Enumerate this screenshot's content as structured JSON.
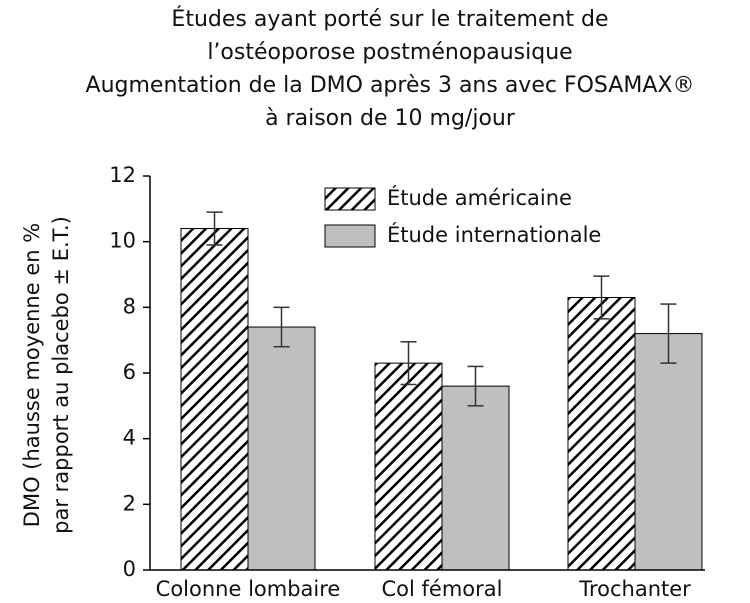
{
  "chart_data": {
    "type": "bar",
    "title_lines": [
      "Études ayant porté sur le traitement de",
      "l’ostéoporose postménopausique",
      "Augmentation de la DMO après 3 ans avec FOSAMAX®",
      "à raison de 10 mg/jour"
    ],
    "ylabel": [
      "DMO (hausse moyenne en %",
      "par rapport au placebo ± E.T.)"
    ],
    "categories": [
      "Colonne lombaire",
      "Col fémoral",
      "Trochanter"
    ],
    "series": [
      {
        "name": "Étude américaine",
        "color": "#000000",
        "fill": "hatch",
        "values": [
          10.4,
          6.3,
          8.3
        ],
        "errors": [
          0.5,
          0.65,
          0.65
        ]
      },
      {
        "name": "Étude internationale",
        "color": "#bfbfbf",
        "fill": "solid",
        "values": [
          7.4,
          5.6,
          7.2
        ],
        "errors": [
          0.6,
          0.6,
          0.9
        ]
      }
    ],
    "ylim": [
      0,
      12
    ],
    "yticks": [
      0,
      2,
      4,
      6,
      8,
      10,
      12
    ],
    "grid": false,
    "legend": "top"
  }
}
